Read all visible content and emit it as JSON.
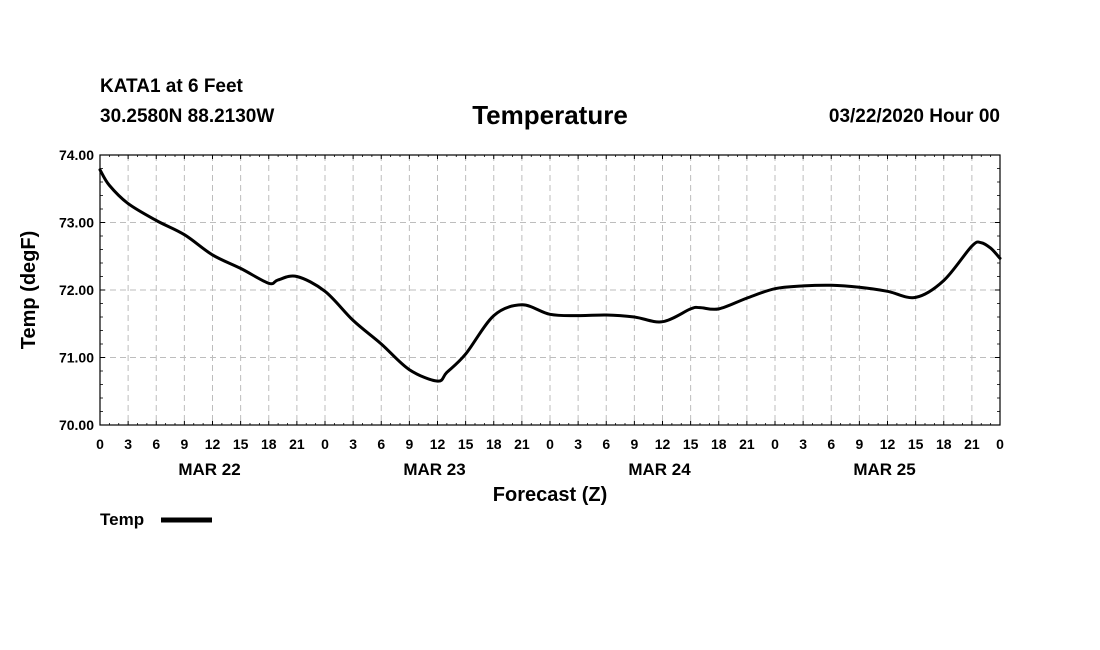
{
  "header": {
    "station": "KATA1 at 6 Feet",
    "coords": "30.2580N 88.2130W",
    "title": "Temperature",
    "datetime": "03/22/2020 Hour 00"
  },
  "chart_data": {
    "type": "line",
    "title": "Temperature",
    "xlabel": "Forecast (Z)",
    "ylabel": "Temp (degF)",
    "ylim": [
      70,
      74
    ],
    "xlim_hours": [
      0,
      96
    ],
    "y_ticks": [
      "70.00",
      "71.00",
      "72.00",
      "73.00",
      "74.00"
    ],
    "x_ticks": [
      "0",
      "3",
      "6",
      "9",
      "12",
      "15",
      "18",
      "21",
      "0",
      "3",
      "6",
      "9",
      "12",
      "15",
      "18",
      "21",
      "0",
      "3",
      "6",
      "9",
      "12",
      "15",
      "18",
      "21",
      "0",
      "3",
      "6",
      "9",
      "12",
      "15",
      "18",
      "21",
      "0"
    ],
    "date_labels": [
      "MAR 22",
      "MAR 23",
      "MAR 24",
      "MAR 25"
    ],
    "grid": true,
    "legend_placement": "bottom-left",
    "line_color": "#000000",
    "series": [
      {
        "name": "Temp",
        "x": [
          0,
          1,
          3,
          6,
          9,
          12,
          15,
          18,
          19,
          21,
          24,
          27,
          30,
          33,
          36,
          37,
          39,
          42,
          45,
          48,
          51,
          54,
          57,
          60,
          63,
          64,
          66,
          69,
          72,
          75,
          78,
          81,
          84,
          87,
          90,
          93,
          94,
          95,
          96
        ],
        "y": [
          73.78,
          73.55,
          73.28,
          73.03,
          72.82,
          72.52,
          72.32,
          72.1,
          72.15,
          72.2,
          71.98,
          71.55,
          71.2,
          70.82,
          70.65,
          70.78,
          71.05,
          71.62,
          71.78,
          71.64,
          71.62,
          71.63,
          71.6,
          71.53,
          71.72,
          71.74,
          71.72,
          71.88,
          72.02,
          72.06,
          72.07,
          72.04,
          71.98,
          71.89,
          72.14,
          72.65,
          72.7,
          72.62,
          72.47
        ]
      }
    ]
  }
}
